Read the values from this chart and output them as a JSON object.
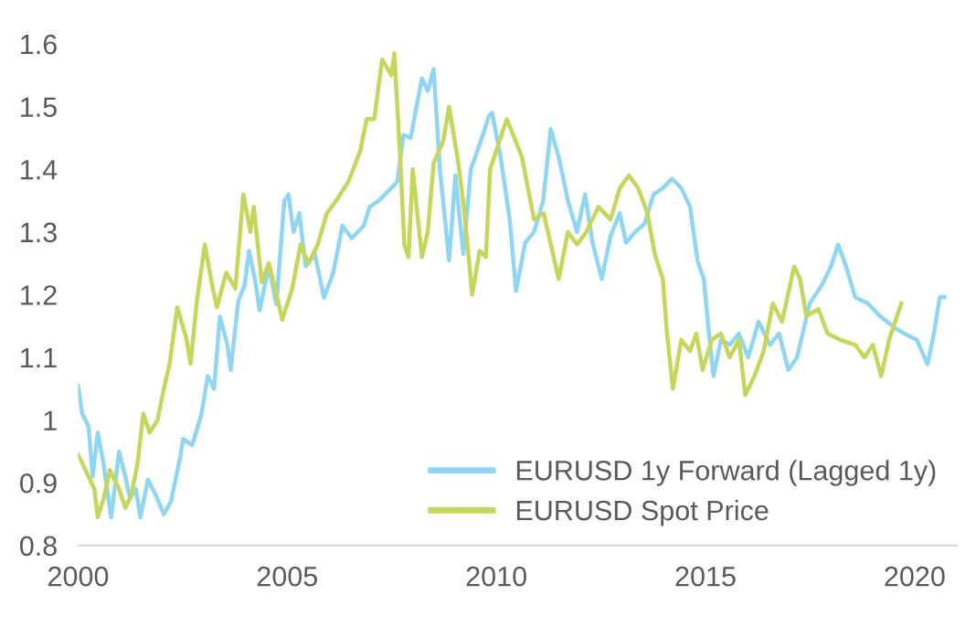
{
  "chart_data": {
    "type": "line",
    "xlim": [
      2000,
      2021
    ],
    "ylim": [
      0.8,
      1.6
    ],
    "xticks": [
      2000,
      2005,
      2010,
      2015,
      2020
    ],
    "yticks": [
      0.8,
      0.9,
      1,
      1.1,
      1.2,
      1.3,
      1.4,
      1.5,
      1.6
    ],
    "grid": false,
    "legend": "bottom right",
    "marker": "none",
    "line_style": "solid",
    "series": [
      {
        "name": "EURUSD 1y Forward (Lagged 1y)",
        "color": "#8fd6f5",
        "x": [
          2000.0,
          2000.1,
          2000.25,
          2000.35,
          2000.47,
          2000.61,
          2000.79,
          2000.98,
          2001.13,
          2001.24,
          2001.38,
          2001.49,
          2001.67,
          2001.86,
          2002.05,
          2002.22,
          2002.44,
          2002.51,
          2002.73,
          2002.95,
          2003.1,
          2003.25,
          2003.39,
          2003.57,
          2003.65,
          2003.83,
          2003.98,
          2004.09,
          2004.24,
          2004.34,
          2004.56,
          2004.74,
          2004.93,
          2005.03,
          2005.15,
          2005.29,
          2005.44,
          2005.66,
          2005.88,
          2006.1,
          2006.32,
          2006.54,
          2006.83,
          2006.97,
          2007.19,
          2007.34,
          2007.63,
          2007.78,
          2007.95,
          2008.22,
          2008.36,
          2008.5,
          2008.65,
          2008.87,
          2009.02,
          2009.21,
          2009.39,
          2009.68,
          2009.82,
          2009.9,
          2010.1,
          2010.32,
          2010.47,
          2010.69,
          2010.9,
          2011.12,
          2011.3,
          2011.49,
          2011.71,
          2011.93,
          2012.12,
          2012.3,
          2012.52,
          2012.73,
          2012.95,
          2013.1,
          2013.32,
          2013.54,
          2013.76,
          2013.98,
          2014.2,
          2014.42,
          2014.63,
          2014.81,
          2014.96,
          2015.07,
          2015.19,
          2015.37,
          2015.58,
          2015.8,
          2016.02,
          2016.27,
          2016.54,
          2016.76,
          2016.98,
          2017.19,
          2017.49,
          2017.78,
          2018.0,
          2018.17,
          2018.36,
          2018.58,
          2018.88,
          2019.17,
          2019.53,
          2019.75,
          2020.05,
          2020.31,
          2020.46,
          2020.6,
          2020.71
        ],
        "values": [
          1.055,
          1.01,
          0.99,
          0.91,
          0.98,
          0.93,
          0.845,
          0.95,
          0.91,
          0.875,
          0.89,
          0.845,
          0.905,
          0.88,
          0.85,
          0.87,
          0.94,
          0.97,
          0.96,
          1.01,
          1.07,
          1.05,
          1.165,
          1.12,
          1.08,
          1.19,
          1.215,
          1.27,
          1.22,
          1.175,
          1.245,
          1.185,
          1.35,
          1.36,
          1.3,
          1.33,
          1.245,
          1.265,
          1.195,
          1.235,
          1.31,
          1.29,
          1.31,
          1.34,
          1.35,
          1.36,
          1.38,
          1.455,
          1.45,
          1.545,
          1.525,
          1.56,
          1.4,
          1.255,
          1.39,
          1.265,
          1.4,
          1.455,
          1.485,
          1.49,
          1.42,
          1.32,
          1.206,
          1.283,
          1.3,
          1.35,
          1.464,
          1.42,
          1.35,
          1.3,
          1.36,
          1.283,
          1.225,
          1.294,
          1.33,
          1.283,
          1.3,
          1.313,
          1.36,
          1.37,
          1.385,
          1.37,
          1.34,
          1.254,
          1.225,
          1.147,
          1.07,
          1.128,
          1.12,
          1.138,
          1.1,
          1.157,
          1.12,
          1.138,
          1.08,
          1.1,
          1.186,
          1.215,
          1.245,
          1.28,
          1.245,
          1.196,
          1.186,
          1.166,
          1.147,
          1.138,
          1.128,
          1.089,
          1.138,
          1.196,
          1.196
        ]
      },
      {
        "name": "EURUSD Spot Price",
        "color": "#c5d65a",
        "x": [
          2000.0,
          2000.18,
          2000.39,
          2000.47,
          2000.61,
          2000.76,
          2000.98,
          2001.13,
          2001.27,
          2001.42,
          2001.56,
          2001.71,
          2001.9,
          2002.05,
          2002.19,
          2002.37,
          2002.59,
          2002.69,
          2002.84,
          2003.03,
          2003.22,
          2003.32,
          2003.54,
          2003.76,
          2003.95,
          2004.12,
          2004.2,
          2004.39,
          2004.56,
          2004.78,
          2004.88,
          2005.12,
          2005.32,
          2005.51,
          2005.73,
          2005.95,
          2006.17,
          2006.46,
          2006.75,
          2006.9,
          2007.08,
          2007.27,
          2007.49,
          2007.56,
          2007.7,
          2007.8,
          2007.9,
          2008.0,
          2008.22,
          2008.36,
          2008.5,
          2008.73,
          2008.87,
          2009.09,
          2009.24,
          2009.42,
          2009.6,
          2009.75,
          2009.85,
          2010.25,
          2010.61,
          2010.9,
          2011.13,
          2011.49,
          2011.71,
          2011.93,
          2012.15,
          2012.44,
          2012.73,
          2012.95,
          2013.17,
          2013.39,
          2013.61,
          2013.79,
          2013.98,
          2014.08,
          2014.22,
          2014.42,
          2014.63,
          2014.78,
          2014.93,
          2015.15,
          2015.37,
          2015.58,
          2015.8,
          2015.95,
          2016.17,
          2016.39,
          2016.61,
          2016.83,
          2017.12,
          2017.26,
          2017.41,
          2017.7,
          2017.92,
          2018.22,
          2018.58,
          2018.8,
          2019.0,
          2019.2,
          2019.39,
          2019.68
        ],
        "values": [
          0.945,
          0.92,
          0.89,
          0.845,
          0.875,
          0.92,
          0.89,
          0.86,
          0.88,
          0.93,
          1.01,
          0.98,
          1.0,
          1.05,
          1.09,
          1.18,
          1.13,
          1.09,
          1.19,
          1.28,
          1.21,
          1.18,
          1.235,
          1.21,
          1.36,
          1.3,
          1.34,
          1.22,
          1.25,
          1.19,
          1.16,
          1.21,
          1.28,
          1.25,
          1.28,
          1.33,
          1.35,
          1.38,
          1.43,
          1.48,
          1.48,
          1.575,
          1.55,
          1.585,
          1.42,
          1.28,
          1.26,
          1.4,
          1.26,
          1.3,
          1.41,
          1.445,
          1.5,
          1.41,
          1.33,
          1.2,
          1.27,
          1.26,
          1.4,
          1.48,
          1.42,
          1.32,
          1.33,
          1.225,
          1.3,
          1.28,
          1.3,
          1.34,
          1.32,
          1.37,
          1.39,
          1.37,
          1.33,
          1.264,
          1.225,
          1.138,
          1.05,
          1.128,
          1.11,
          1.138,
          1.08,
          1.128,
          1.138,
          1.1,
          1.128,
          1.04,
          1.07,
          1.11,
          1.186,
          1.157,
          1.245,
          1.225,
          1.166,
          1.177,
          1.138,
          1.128,
          1.12,
          1.1,
          1.12,
          1.07,
          1.128,
          1.186
        ]
      }
    ]
  }
}
